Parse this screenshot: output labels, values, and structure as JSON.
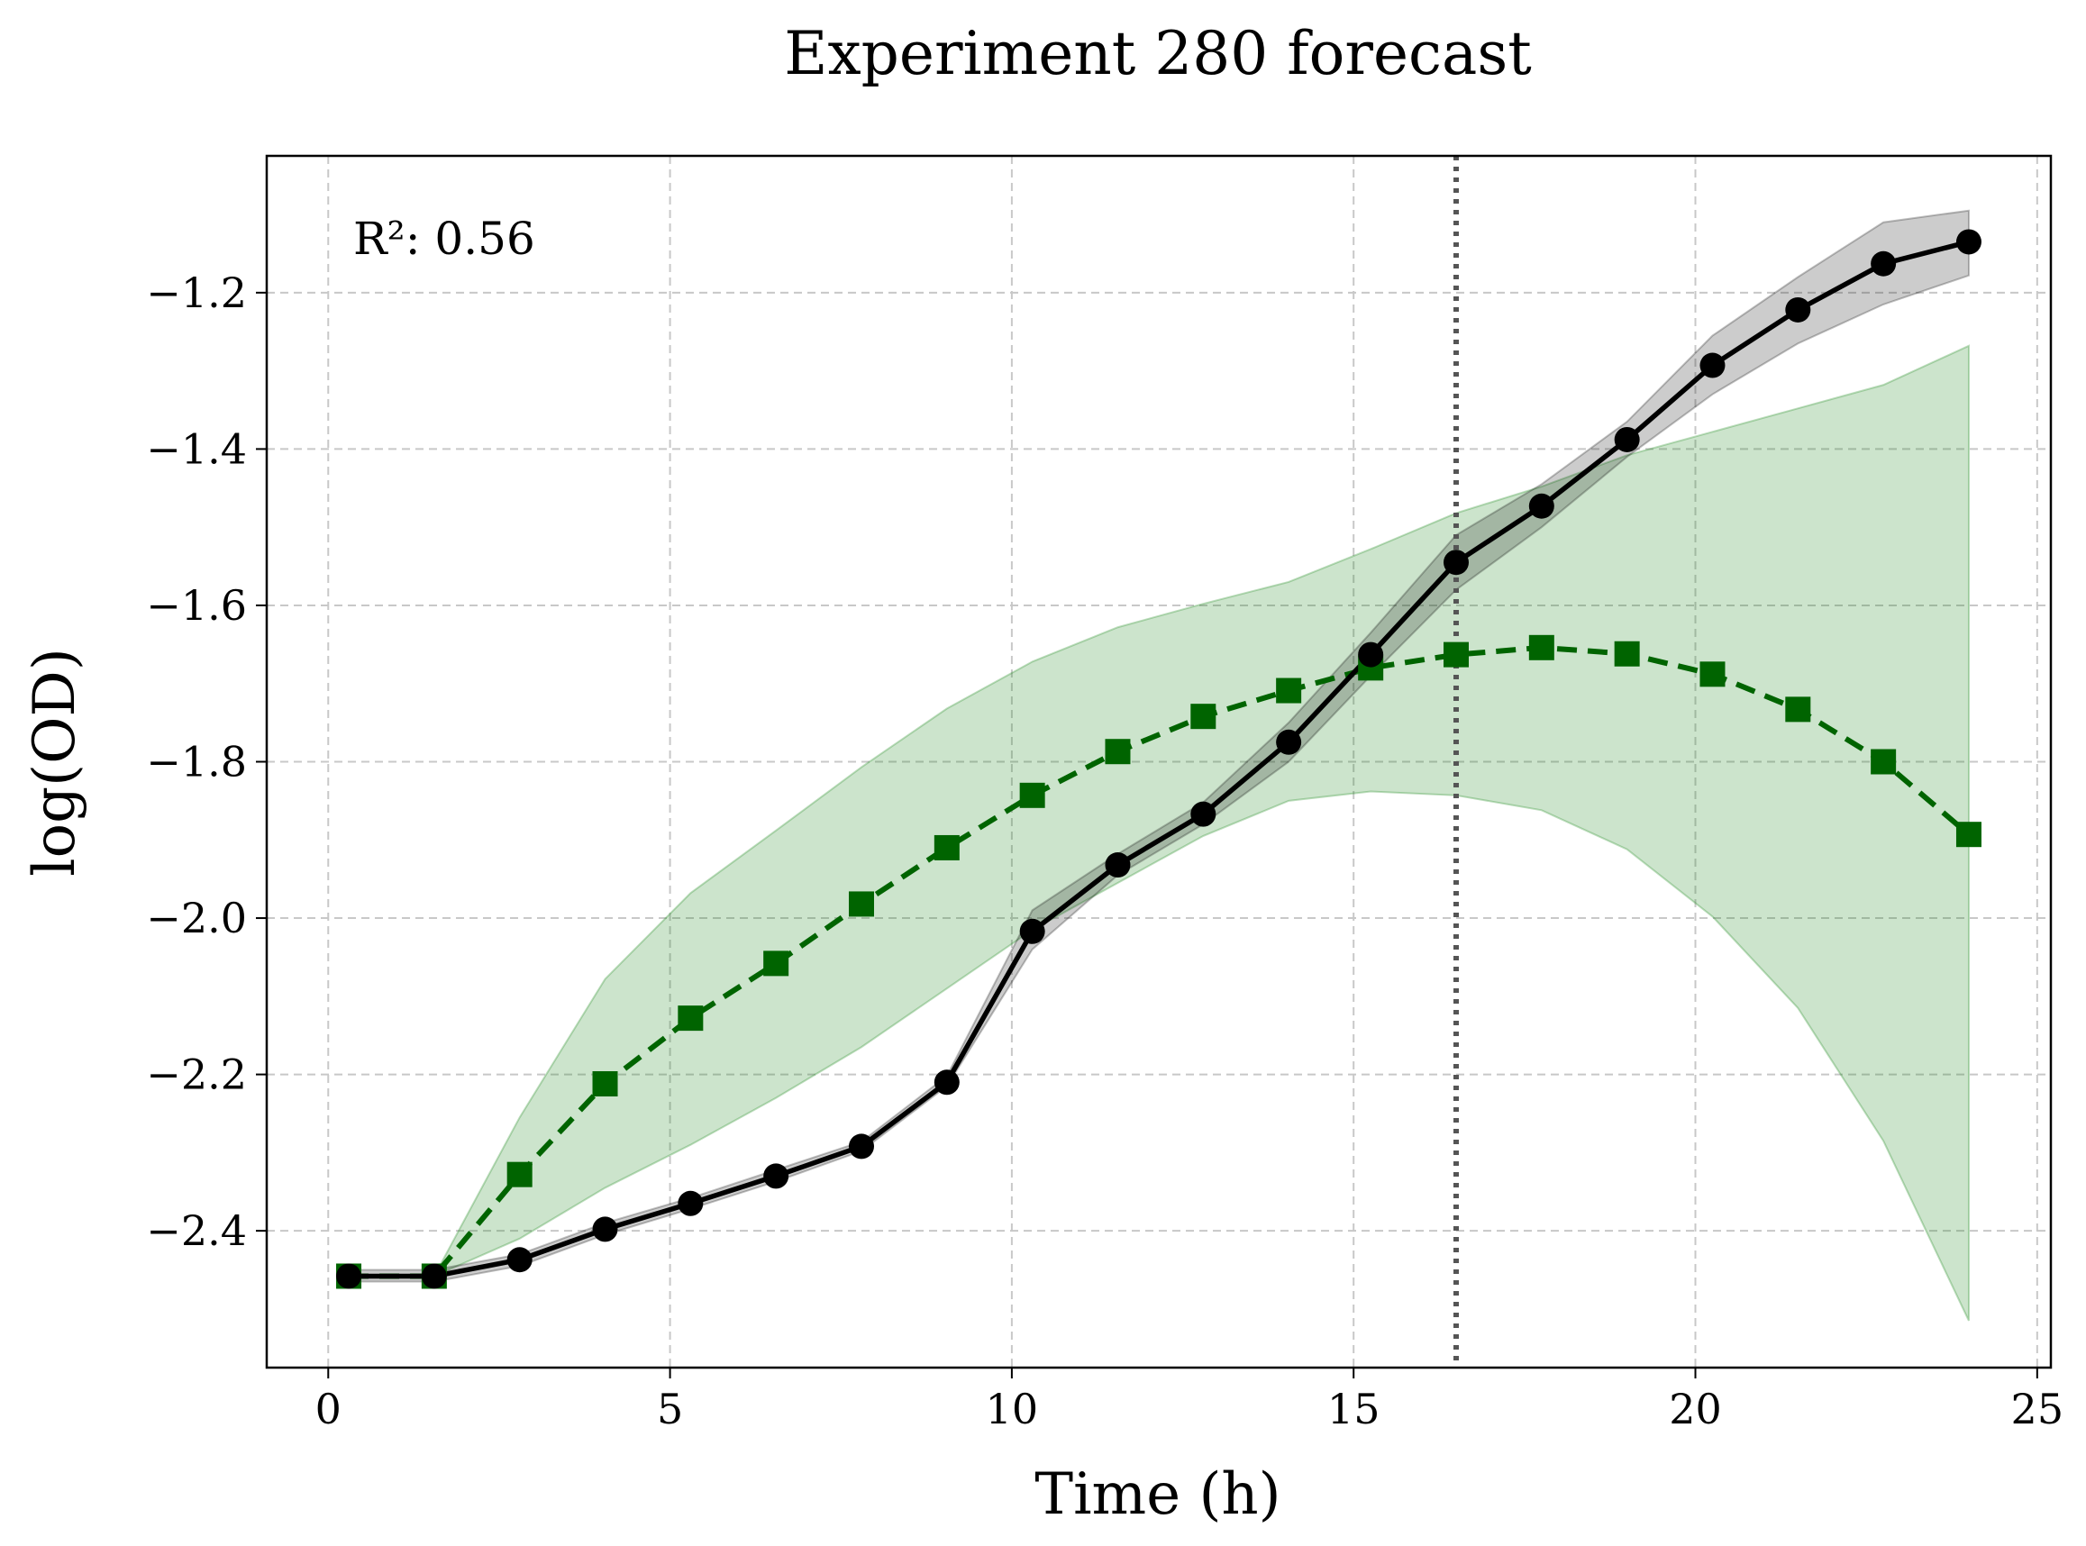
{
  "chart_data": {
    "type": "line",
    "title": "Experiment 280 forecast",
    "xlabel": "Time (h)",
    "ylabel": "log(OD)",
    "annotation": "R²: 0.56",
    "xlim": [
      -0.9,
      25.2
    ],
    "ylim": [
      -2.575,
      -1.025
    ],
    "xticks": [
      0,
      5,
      10,
      15,
      20,
      25
    ],
    "xtick_labels": [
      "0",
      "5",
      "10",
      "15",
      "20",
      "25"
    ],
    "yticks": [
      -2.4,
      -2.2,
      -2.0,
      -1.8,
      -1.6,
      -1.4,
      -1.2
    ],
    "ytick_labels": [
      "−2.4",
      "−2.2",
      "−2.0",
      "−1.8",
      "−1.6",
      "−1.4",
      "−1.2"
    ],
    "grid": true,
    "vline": {
      "x": 16.5,
      "color": "#555555",
      "style": "dotted"
    },
    "series": [
      {
        "role": "observed",
        "color": "#000000",
        "marker": "circle",
        "linestyle": "solid",
        "x": [
          0.3,
          1.55,
          2.8,
          4.05,
          5.3,
          6.55,
          7.8,
          9.05,
          10.3,
          11.55,
          12.8,
          14.05,
          15.25,
          16.5,
          17.75,
          19.0,
          20.25,
          21.5,
          22.75,
          24.0
        ],
        "y": [
          -2.458,
          -2.458,
          -2.437,
          -2.398,
          -2.365,
          -2.33,
          -2.292,
          -2.21,
          -2.017,
          -1.932,
          -1.867,
          -1.775,
          -1.663,
          -1.545,
          -1.473,
          -1.388,
          -1.293,
          -1.222,
          -1.163,
          -1.135
        ],
        "band_lower": [
          -2.465,
          -2.465,
          -2.445,
          -2.405,
          -2.372,
          -2.337,
          -2.298,
          -2.215,
          -2.04,
          -1.945,
          -1.88,
          -1.8,
          -1.69,
          -1.58,
          -1.5,
          -1.41,
          -1.33,
          -1.265,
          -1.215,
          -1.178
        ],
        "band_upper": [
          -2.45,
          -2.45,
          -2.43,
          -2.39,
          -2.358,
          -2.322,
          -2.286,
          -2.202,
          -1.99,
          -1.918,
          -1.852,
          -1.75,
          -1.635,
          -1.51,
          -1.445,
          -1.365,
          -1.255,
          -1.18,
          -1.11,
          -1.095
        ]
      },
      {
        "role": "forecast",
        "color": "#006400",
        "band_color": "#228b22",
        "marker": "square",
        "linestyle": "dashed",
        "x": [
          0.3,
          1.55,
          2.8,
          4.05,
          5.3,
          6.55,
          7.8,
          9.05,
          10.3,
          11.55,
          12.8,
          14.05,
          15.25,
          16.5,
          17.75,
          19.0,
          20.25,
          21.5,
          22.75,
          24.0
        ],
        "y": [
          -2.458,
          -2.458,
          -2.328,
          -2.212,
          -2.128,
          -2.058,
          -1.982,
          -1.91,
          -1.843,
          -1.787,
          -1.742,
          -1.709,
          -1.68,
          -1.663,
          -1.654,
          -1.662,
          -1.688,
          -1.733,
          -1.8,
          -1.893
        ],
        "band_lower": [
          -2.458,
          -2.458,
          -2.41,
          -2.345,
          -2.29,
          -2.23,
          -2.165,
          -2.09,
          -2.015,
          -1.955,
          -1.895,
          -1.85,
          -1.838,
          -1.843,
          -1.862,
          -1.912,
          -1.998,
          -2.115,
          -2.285,
          -2.515
        ],
        "band_upper": [
          -2.458,
          -2.458,
          -2.255,
          -2.078,
          -1.968,
          -1.888,
          -1.807,
          -1.732,
          -1.672,
          -1.628,
          -1.598,
          -1.57,
          -1.528,
          -1.482,
          -1.448,
          -1.408,
          -1.378,
          -1.348,
          -1.318,
          -1.268
        ]
      }
    ]
  }
}
